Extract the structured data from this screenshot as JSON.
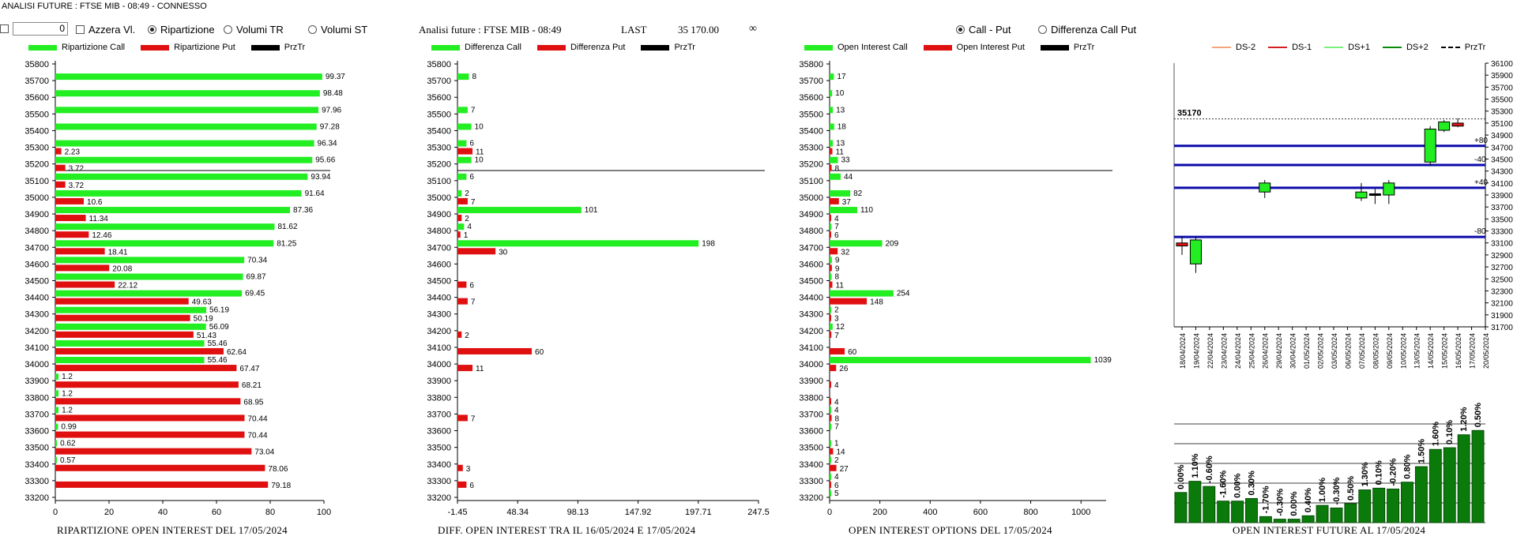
{
  "window": {
    "title": "ANALISI FUTURE : FTSE MIB - 08:49 - CONNESSO"
  },
  "controls": {
    "value_input": "0",
    "azzera_label": "Azzera Vl.",
    "radio_ripartizione": "Ripartizione",
    "radio_volumi_tr": "Volumi TR",
    "radio_volumi_st": "Volumi ST",
    "selected": "Ripartizione"
  },
  "header": {
    "analisi": "Analisi future : FTSE MIB - 08:49",
    "last_label": "LAST",
    "last_value": "35 170.00",
    "infinity": "∞",
    "radio_call_put": "Call - Put",
    "radio_diff": "Differenza Call Put",
    "selected": "Call - Put"
  },
  "colors": {
    "green": "#22ee22",
    "red": "#e01010",
    "black": "#000000",
    "blue": "#0b0baa",
    "darkgreen": "#0a7a0a"
  },
  "strikes": [
    35800,
    35700,
    35600,
    35500,
    35400,
    35300,
    35200,
    35100,
    35000,
    34900,
    34800,
    34700,
    34600,
    34500,
    34400,
    34300,
    34200,
    34100,
    34000,
    33900,
    33800,
    33700,
    33600,
    33500,
    33400,
    33300,
    33200
  ],
  "chart_data": [
    {
      "type": "bar",
      "title": "RIPARTIZIONE OPEN INTEREST DEL 17/05/2024",
      "orientation": "horizontal",
      "xlim": [
        0,
        100
      ],
      "x_ticks": [
        "0",
        "20",
        "40",
        "60",
        "80",
        "100"
      ],
      "categories": [
        "35700",
        "35600",
        "35500",
        "35400",
        "35300",
        "35200",
        "35100",
        "35000",
        "34900",
        "34800",
        "34700",
        "34600",
        "34500",
        "34400",
        "34300",
        "34200",
        "34100",
        "34000",
        "33900",
        "33800",
        "33700",
        "33600",
        "33500",
        "33400",
        "33300"
      ],
      "series": [
        {
          "name": "Ripartizione Call",
          "values": [
            99.37,
            98.48,
            97.96,
            97.28,
            96.34,
            95.66,
            93.94,
            91.64,
            87.36,
            81.62,
            81.25,
            70.34,
            69.87,
            69.45,
            56.19,
            56.09,
            55.46,
            55.46,
            1.2,
            1.2,
            1.2,
            0.99,
            0.62,
            0.57,
            null
          ]
        },
        {
          "name": "Ripartizione Put",
          "values": [
            null,
            null,
            null,
            null,
            2.23,
            3.72,
            3.72,
            10.6,
            11.34,
            12.46,
            18.41,
            20.08,
            22.12,
            49.63,
            50.19,
            51.43,
            62.64,
            67.47,
            68.21,
            68.95,
            70.44,
            70.44,
            73.04,
            78.06,
            79.18
          ]
        }
      ],
      "legend": [
        "Ripartizione Call",
        "Ripartizione Put",
        "PrzTr"
      ],
      "price_line_strike": 35170
    },
    {
      "type": "bar",
      "title": "DIFF. OPEN INTEREST TRA IL 16/05/2024 E 17/05/2024",
      "orientation": "horizontal",
      "xlim": [
        -1.45,
        247.5
      ],
      "x_ticks": [
        "-1.45",
        "48.34",
        "98.13",
        "147.92",
        "197.71",
        "247.5"
      ],
      "categories": [
        "35700",
        "35500",
        "35400",
        "35300",
        "35200",
        "35100",
        "35000",
        "34900",
        "34800",
        "34700",
        "34500",
        "34400",
        "34200",
        "34100",
        "34000",
        "33700",
        "33400",
        "33300"
      ],
      "series": [
        {
          "name": "Differenza Call",
          "values": [
            8,
            7,
            10,
            6,
            10,
            6,
            2,
            101,
            4,
            198,
            null,
            null,
            null,
            null,
            null,
            null,
            null,
            null
          ]
        },
        {
          "name": "Differenza Put",
          "values": [
            null,
            null,
            null,
            11,
            null,
            null,
            7,
            2,
            1,
            30,
            6,
            7,
            2,
            60,
            11,
            7,
            3,
            6
          ]
        }
      ],
      "legend": [
        "Differenza Call",
        "Differenza Put",
        "PrzTr"
      ],
      "price_line_strike": 35170
    },
    {
      "type": "bar",
      "title": "OPEN INTEREST OPTIONS DEL 17/05/2024",
      "orientation": "horizontal",
      "xlim": [
        0,
        1100
      ],
      "x_ticks": [
        "0",
        "200",
        "400",
        "600",
        "800",
        "1000"
      ],
      "categories": [
        "35700",
        "35600",
        "35500",
        "35400",
        "35300",
        "35200",
        "35100",
        "35000",
        "34900",
        "34800",
        "34700",
        "34600",
        "34500",
        "34400",
        "34300",
        "34200",
        "34100",
        "34000",
        "33900",
        "33800",
        "33700",
        "33600",
        "33500",
        "33400",
        "33300",
        "33200"
      ],
      "series": [
        {
          "name": "Open Interest Call",
          "values": [
            17,
            10,
            13,
            18,
            13,
            33,
            44,
            82,
            110,
            7,
            209,
            9,
            8,
            254,
            2,
            12,
            null,
            1039,
            null,
            null,
            4,
            7,
            1,
            2,
            4,
            5
          ]
        },
        {
          "name": "Open Interest Put",
          "values": [
            null,
            null,
            null,
            null,
            11,
            8,
            null,
            37,
            4,
            6,
            32,
            9,
            11,
            148,
            3,
            7,
            60,
            26,
            4,
            4,
            8,
            null,
            14,
            27,
            6,
            null
          ]
        }
      ],
      "legend": [
        "Open Interest Call",
        "Open Interest Put",
        "PrzTr"
      ],
      "price_line_strike": 35170
    },
    {
      "type": "candlestick",
      "legend": [
        "DS-2",
        "DS-1",
        "DS+1",
        "DS+2",
        "PrzTr"
      ],
      "ylim": [
        31700,
        36100
      ],
      "y_ticks": [
        "36100",
        "35900",
        "35700",
        "35500",
        "35300",
        "35100",
        "34900",
        "34700",
        "34500",
        "34300",
        "34100",
        "33900",
        "33700",
        "33500",
        "33300",
        "33100",
        "32900",
        "32700",
        "32500",
        "32300",
        "32100",
        "31900",
        "31700"
      ],
      "dates": [
        "18/04/2024",
        "19/04/2024",
        "22/04/2024",
        "23/04/2024",
        "24/04/2024",
        "25/04/2024",
        "26/04/2024",
        "29/04/2024",
        "30/04/2024",
        "01/05/2024",
        "02/05/2024",
        "03/05/2024",
        "06/05/2024",
        "07/05/2024",
        "08/05/2024",
        "09/05/2024",
        "10/05/2024",
        "13/05/2024",
        "14/05/2024",
        "15/05/2024",
        "16/05/2024",
        "17/05/2024",
        "20/05/2024"
      ],
      "price_label": "35170",
      "price": 35170,
      "levels": [
        {
          "value": 34720,
          "label": "+80"
        },
        {
          "value": 34400,
          "label": "-40"
        },
        {
          "value": 34020,
          "label": "+40"
        },
        {
          "value": 33200,
          "label": "-80"
        }
      ],
      "candles": [
        {
          "date": "18/04/2024",
          "open": 33100,
          "close": 33050,
          "high": 33200,
          "low": 32900,
          "color": "red"
        },
        {
          "date": "19/04/2024",
          "open": 32750,
          "close": 33150,
          "high": 33200,
          "low": 32600,
          "color": "green"
        },
        {
          "date": "26/04/2024",
          "open": 33950,
          "close": 34100,
          "high": 34150,
          "low": 33850,
          "color": "green"
        },
        {
          "date": "07/05/2024",
          "open": 33850,
          "close": 33950,
          "high": 34100,
          "low": 33800,
          "color": "green"
        },
        {
          "date": "08/05/2024",
          "open": 33920,
          "close": 33900,
          "high": 34000,
          "low": 33750,
          "color": "black"
        },
        {
          "date": "09/05/2024",
          "open": 33900,
          "close": 34100,
          "high": 34150,
          "low": 33750,
          "color": "green"
        },
        {
          "date": "14/05/2024",
          "open": 34450,
          "close": 35000,
          "high": 35050,
          "low": 34400,
          "color": "green"
        },
        {
          "date": "15/05/2024",
          "open": 34980,
          "close": 35120,
          "high": 35150,
          "low": 34950,
          "color": "green"
        },
        {
          "date": "16/05/2024",
          "open": 35100,
          "close": 35050,
          "high": 35180,
          "low": 35030,
          "color": "red"
        }
      ]
    },
    {
      "type": "bar",
      "title": "OPEN INTEREST FUTURE AL 17/05/2024",
      "labels": [
        "0.00%",
        "1.10%",
        "-0.60%",
        "-1.60%",
        "0.00%",
        "0.30%",
        "-1.70%",
        "-0.30%",
        "0.00%",
        "0.40%",
        "1.00%",
        "-0.30%",
        "0.50%",
        "1.30%",
        "0.10%",
        "-0.20%",
        "0.80%",
        "1.50%",
        "1.60%",
        "0.10%",
        "1.20%",
        "0.50%"
      ],
      "values": [
        35,
        48,
        42,
        25,
        25,
        28,
        7,
        4,
        4,
        8,
        20,
        17,
        22,
        38,
        40,
        39,
        47,
        65,
        85,
        87,
        102,
        107
      ]
    }
  ]
}
